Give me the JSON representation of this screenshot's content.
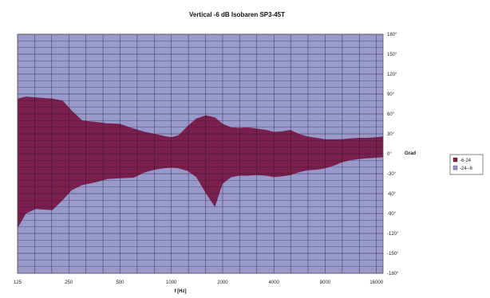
{
  "chart_data": {
    "type": "area",
    "title": "Vertical -6 dB Isobaren SP3-45T",
    "xlabel": "f [Hz]",
    "ylabel": "Grad",
    "x_scale": "log",
    "x_ticks": [
      {
        "value": 125,
        "label": "125"
      },
      {
        "value": 250,
        "label": "250"
      },
      {
        "value": 500,
        "label": "500"
      },
      {
        "value": 1000,
        "label": "1000"
      },
      {
        "value": 2000,
        "label": "2000"
      },
      {
        "value": 4000,
        "label": "4000"
      },
      {
        "value": 8000,
        "label": "8000"
      },
      {
        "value": 16000,
        "label": "16000"
      }
    ],
    "ylim": [
      -180,
      180
    ],
    "y_ticks": [
      {
        "value": 180,
        "label": "180°"
      },
      {
        "value": 150,
        "label": "150°"
      },
      {
        "value": 120,
        "label": "120°"
      },
      {
        "value": 90,
        "label": "90°"
      },
      {
        "value": 60,
        "label": "60°"
      },
      {
        "value": 30,
        "label": "30°"
      },
      {
        "value": 0,
        "label": "0°"
      },
      {
        "value": -30,
        "label": "-30°"
      },
      {
        "value": -60,
        "label": "-60°"
      },
      {
        "value": -90,
        "label": "-90°"
      },
      {
        "value": -120,
        "label": "-120°"
      },
      {
        "value": -150,
        "label": "-150°"
      },
      {
        "value": -180,
        "label": "-180°"
      }
    ],
    "grid": true,
    "legend_position": "right",
    "colors": {
      "band": "#7b1f4f",
      "background": "#9999cc",
      "grid": "#1a1a1a"
    },
    "x": [
      125,
      140,
      160,
      200,
      230,
      260,
      300,
      360,
      420,
      500,
      600,
      700,
      800,
      900,
      1000,
      1100,
      1250,
      1400,
      1600,
      1800,
      2000,
      2250,
      2500,
      2800,
      3150,
      3600,
      4000,
      4500,
      5000,
      5600,
      6300,
      7100,
      8000,
      9000,
      10000,
      11200,
      12500,
      14000,
      16000,
      17500
    ],
    "series": [
      {
        "name": "-6-24",
        "values": [
          83,
          86,
          85,
          83,
          80,
          65,
          50,
          48,
          46,
          45,
          38,
          33,
          30,
          27,
          25,
          28,
          42,
          53,
          58,
          55,
          45,
          40,
          39,
          40,
          38,
          36,
          33,
          34,
          36,
          30,
          26,
          24,
          22,
          22,
          22,
          23,
          24,
          24,
          25,
          26
        ]
      },
      {
        "name": "-24--6",
        "values": [
          -112,
          -90,
          -83,
          -85,
          -70,
          -55,
          -47,
          -43,
          -38,
          -37,
          -36,
          -28,
          -24,
          -22,
          -21,
          -22,
          -26,
          -35,
          -60,
          -80,
          -45,
          -35,
          -33,
          -33,
          -32,
          -33,
          -35,
          -34,
          -32,
          -28,
          -25,
          -24,
          -22,
          -18,
          -13,
          -10,
          -8,
          -7,
          -6,
          -5
        ]
      }
    ]
  },
  "legend": [
    {
      "label": "-6-24",
      "color": "#7b1f4f"
    },
    {
      "label": "-24--6",
      "color": "#9999cc"
    }
  ]
}
